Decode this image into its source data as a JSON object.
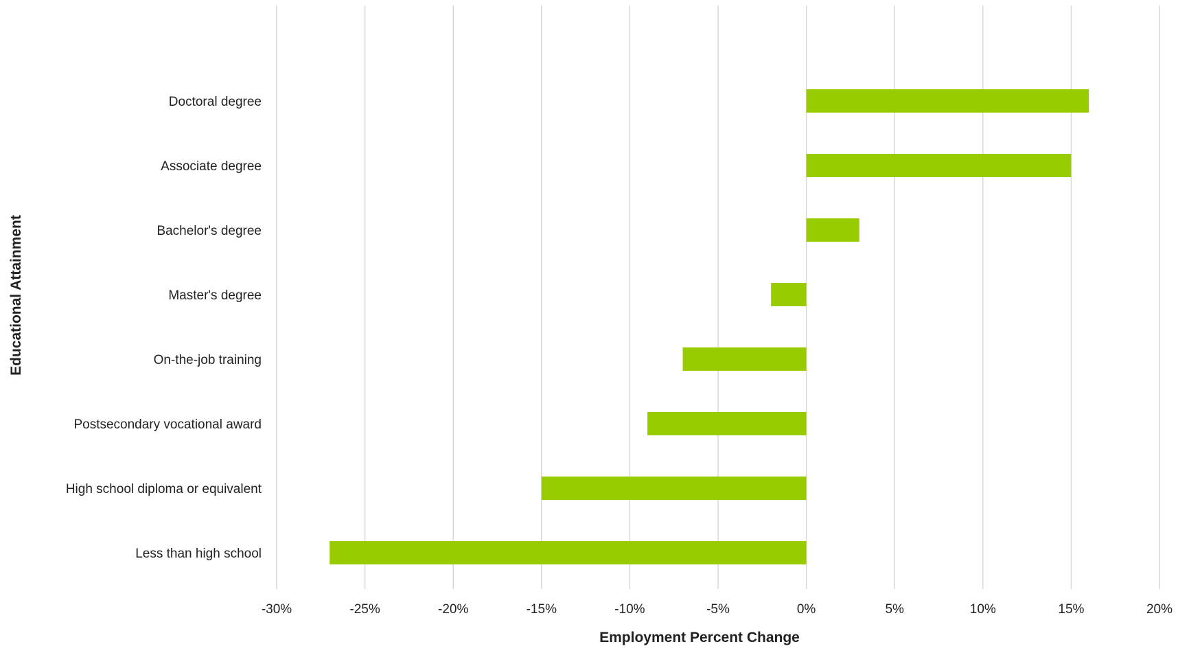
{
  "chart_data": {
    "type": "bar",
    "orientation": "horizontal",
    "categories": [
      "Doctoral degree",
      "Associate degree",
      "Bachelor's degree",
      "Master's degree",
      "On-the-job training",
      "Postsecondary vocational award",
      "High school diploma or equivalent",
      "Less than high school"
    ],
    "values": [
      16,
      15,
      3,
      -2,
      -7,
      -9,
      -15,
      -27
    ],
    "xlabel": "Employment Percent Change",
    "ylabel": "Educational Attainment",
    "xlim": [
      -30,
      20
    ],
    "xticks": [
      -30,
      -25,
      -20,
      -15,
      -10,
      -5,
      0,
      5,
      10,
      15,
      20
    ],
    "xtick_labels": [
      "-30%",
      "-25%",
      "-20%",
      "-15%",
      "-10%",
      "-5%",
      "0%",
      "5%",
      "10%",
      "15%",
      "20%"
    ],
    "grid": "vertical",
    "bar_color": "#99cc00",
    "grid_color": "#d9d9d9"
  }
}
